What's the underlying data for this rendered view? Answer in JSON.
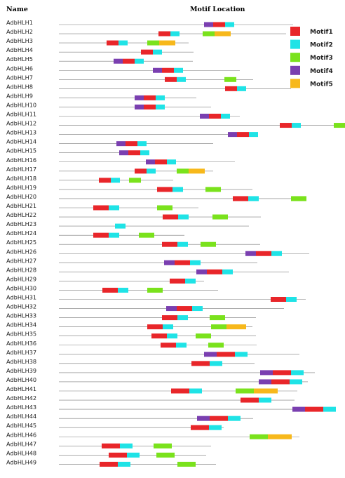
{
  "header": {
    "name": "Name",
    "motif_location": "Motif Location"
  },
  "legend": [
    {
      "key": "m1",
      "label": "Motif1",
      "color": "#e8262a"
    },
    {
      "key": "m2",
      "label": "Motif2",
      "color": "#1fe3e6"
    },
    {
      "key": "m3",
      "label": "Motif3",
      "color": "#7ae21c"
    },
    {
      "key": "m4",
      "label": "Motif4",
      "color": "#7a3fb0"
    },
    {
      "key": "m5",
      "label": "Motif5",
      "color": "#f7b81b"
    }
  ],
  "genes": [
    {
      "name": "AdbHLH1",
      "len": 334,
      "motifs": [
        [
          "m4",
          207,
          13
        ],
        [
          "m1",
          220,
          17
        ],
        [
          "m2",
          237,
          13
        ]
      ]
    },
    {
      "name": "AdbHLH2",
      "len": 324,
      "motifs": [
        [
          "m1",
          142,
          17
        ],
        [
          "m2",
          159,
          13
        ],
        [
          "m3",
          205,
          17
        ],
        [
          "m5",
          222,
          23
        ]
      ]
    },
    {
      "name": "AdbHLH3",
      "len": 185,
      "motifs": [
        [
          "m1",
          68,
          17
        ],
        [
          "m2",
          85,
          13
        ],
        [
          "m3",
          126,
          17
        ],
        [
          "m5",
          143,
          23
        ]
      ]
    },
    {
      "name": "AdbHLH4",
      "len": 192,
      "motifs": [
        [
          "m1",
          117,
          17
        ],
        [
          "m2",
          134,
          13
        ]
      ]
    },
    {
      "name": "AdbHLH5",
      "len": 191,
      "motifs": [
        [
          "m4",
          78,
          13
        ],
        [
          "m1",
          91,
          17
        ],
        [
          "m2",
          108,
          13
        ]
      ]
    },
    {
      "name": "AdbHLH6",
      "len": 258,
      "motifs": [
        [
          "m4",
          134,
          13
        ],
        [
          "m1",
          147,
          17
        ],
        [
          "m2",
          164,
          13
        ]
      ]
    },
    {
      "name": "AdbHLH7",
      "len": 277,
      "motifs": [
        [
          "m1",
          151,
          17
        ],
        [
          "m2",
          168,
          13
        ],
        [
          "m3",
          236,
          17
        ]
      ]
    },
    {
      "name": "AdbHLH8",
      "len": 331,
      "motifs": [
        [
          "m1",
          237,
          17
        ],
        [
          "m2",
          254,
          13
        ]
      ]
    },
    {
      "name": "AdbHLH9",
      "len": 196,
      "motifs": [
        [
          "m4",
          108,
          13
        ],
        [
          "m1",
          121,
          17
        ],
        [
          "m2",
          138,
          13
        ]
      ]
    },
    {
      "name": "AdbHLH10",
      "len": 217,
      "motifs": [
        [
          "m4",
          108,
          13
        ],
        [
          "m1",
          121,
          17
        ],
        [
          "m2",
          138,
          13
        ]
      ]
    },
    {
      "name": "AdbHLH11",
      "len": 258,
      "motifs": [
        [
          "m4",
          201,
          13
        ],
        [
          "m1",
          214,
          17
        ],
        [
          "m2",
          231,
          13
        ]
      ]
    },
    {
      "name": "AdbHLH12",
      "len": 414,
      "motifs": [
        [
          "m1",
          315,
          17
        ],
        [
          "m2",
          332,
          13
        ],
        [
          "m3",
          392,
          17
        ]
      ]
    },
    {
      "name": "AdbHLH13",
      "len": 283,
      "motifs": [
        [
          "m4",
          241,
          13
        ],
        [
          "m1",
          254,
          17
        ],
        [
          "m2",
          271,
          13
        ]
      ]
    },
    {
      "name": "AdbHLH14",
      "len": 220,
      "motifs": [
        [
          "m4",
          82,
          13
        ],
        [
          "m1",
          95,
          17
        ],
        [
          "m2",
          112,
          13
        ]
      ]
    },
    {
      "name": "AdbHLH15",
      "len": 128,
      "motifs": [
        [
          "m4",
          86,
          13
        ],
        [
          "m1",
          99,
          17
        ],
        [
          "m2",
          116,
          13
        ]
      ]
    },
    {
      "name": "AdbHLH16",
      "len": 251,
      "motifs": [
        [
          "m4",
          124,
          13
        ],
        [
          "m1",
          137,
          17
        ],
        [
          "m2",
          154,
          13
        ]
      ]
    },
    {
      "name": "AdbHLH17",
      "len": 220,
      "motifs": [
        [
          "m1",
          108,
          17
        ],
        [
          "m2",
          125,
          13
        ],
        [
          "m3",
          168,
          17
        ],
        [
          "m5",
          185,
          23
        ]
      ]
    },
    {
      "name": "AdbHLH18",
      "len": 163,
      "motifs": [
        [
          "m1",
          57,
          17
        ],
        [
          "m2",
          74,
          13
        ],
        [
          "m3",
          100,
          17
        ]
      ]
    },
    {
      "name": "AdbHLH19",
      "len": 276,
      "motifs": [
        [
          "m1",
          140,
          22
        ],
        [
          "m2",
          162,
          15
        ],
        [
          "m3",
          209,
          22
        ]
      ]
    },
    {
      "name": "AdbHLH20",
      "len": 348,
      "motifs": [
        [
          "m1",
          248,
          22
        ],
        [
          "m2",
          270,
          15
        ],
        [
          "m3",
          331,
          22
        ]
      ]
    },
    {
      "name": "AdbHLH21",
      "len": 199,
      "motifs": [
        [
          "m1",
          49,
          22
        ],
        [
          "m2",
          71,
          15
        ],
        [
          "m3",
          140,
          22
        ]
      ]
    },
    {
      "name": "AdbHLH22",
      "len": 288,
      "motifs": [
        [
          "m1",
          148,
          22
        ],
        [
          "m2",
          170,
          15
        ],
        [
          "m3",
          219,
          22
        ]
      ]
    },
    {
      "name": "AdbHLH23",
      "len": 271,
      "motifs": [
        [
          "m2",
          80,
          15
        ]
      ]
    },
    {
      "name": "AdbHLH24",
      "len": 179,
      "motifs": [
        [
          "m1",
          49,
          22
        ],
        [
          "m2",
          71,
          15
        ],
        [
          "m3",
          114,
          22
        ]
      ]
    },
    {
      "name": "AdbHLH25",
      "len": 287,
      "motifs": [
        [
          "m1",
          147,
          22
        ],
        [
          "m2",
          169,
          15
        ],
        [
          "m3",
          202,
          22
        ]
      ]
    },
    {
      "name": "AdbHLH26",
      "len": 357,
      "motifs": [
        [
          "m4",
          266,
          15
        ],
        [
          "m1",
          281,
          22
        ],
        [
          "m2",
          303,
          15
        ]
      ]
    },
    {
      "name": "AdbHLH27",
      "len": 283,
      "motifs": [
        [
          "m4",
          150,
          15
        ],
        [
          "m1",
          165,
          22
        ],
        [
          "m2",
          187,
          15
        ]
      ]
    },
    {
      "name": "AdbHLH28",
      "len": 328,
      "motifs": [
        [
          "m4",
          196,
          15
        ],
        [
          "m1",
          211,
          22
        ],
        [
          "m2",
          233,
          15
        ]
      ]
    },
    {
      "name": "AdbHLH29",
      "len": 207,
      "motifs": [
        [
          "m1",
          158,
          22
        ],
        [
          "m2",
          180,
          15
        ]
      ]
    },
    {
      "name": "AdbHLH30",
      "len": 227,
      "motifs": [
        [
          "m1",
          62,
          22
        ],
        [
          "m2",
          84,
          15
        ],
        [
          "m3",
          126,
          22
        ]
      ]
    },
    {
      "name": "AdbHLH31",
      "len": 352,
      "motifs": [
        [
          "m1",
          302,
          22
        ],
        [
          "m2",
          324,
          15
        ]
      ]
    },
    {
      "name": "AdbHLH32",
      "len": 321,
      "motifs": [
        [
          "m4",
          153,
          15
        ],
        [
          "m1",
          168,
          22
        ],
        [
          "m2",
          190,
          15
        ]
      ]
    },
    {
      "name": "AdbHLH33",
      "len": 281,
      "motifs": [
        [
          "m1",
          147,
          22
        ],
        [
          "m2",
          169,
          15
        ],
        [
          "m3",
          215,
          22
        ]
      ]
    },
    {
      "name": "AdbHLH34",
      "len": 276,
      "motifs": [
        [
          "m1",
          126,
          22
        ],
        [
          "m2",
          148,
          15
        ],
        [
          "m3",
          217,
          22
        ],
        [
          "m5",
          239,
          28
        ]
      ]
    },
    {
      "name": "AdbHLH35",
      "len": 281,
      "motifs": [
        [
          "m1",
          132,
          22
        ],
        [
          "m2",
          154,
          15
        ],
        [
          "m3",
          195,
          22
        ]
      ]
    },
    {
      "name": "AdbHLH36",
      "len": 282,
      "motifs": [
        [
          "m1",
          145,
          22
        ],
        [
          "m2",
          167,
          15
        ],
        [
          "m3",
          213,
          22
        ]
      ]
    },
    {
      "name": "AdbHLH37",
      "len": 343,
      "motifs": [
        [
          "m4",
          207,
          18
        ],
        [
          "m1",
          225,
          26
        ],
        [
          "m2",
          251,
          18
        ]
      ]
    },
    {
      "name": "AdbHLH38",
      "len": 279,
      "motifs": [
        [
          "m1",
          189,
          26
        ],
        [
          "m2",
          215,
          18
        ]
      ]
    },
    {
      "name": "AdbHLH39",
      "len": 365,
      "motifs": [
        [
          "m4",
          287,
          18
        ],
        [
          "m1",
          305,
          26
        ],
        [
          "m2",
          331,
          18
        ]
      ]
    },
    {
      "name": "AdbHLH40",
      "len": 355,
      "motifs": [
        [
          "m4",
          285,
          18
        ],
        [
          "m1",
          303,
          26
        ],
        [
          "m2",
          329,
          18
        ]
      ]
    },
    {
      "name": "AdbHLH41",
      "len": 340,
      "motifs": [
        [
          "m1",
          160,
          26
        ],
        [
          "m2",
          186,
          18
        ],
        [
          "m3",
          252,
          26
        ],
        [
          "m5",
          278,
          34
        ]
      ]
    },
    {
      "name": "AdbHLH42",
      "len": 336,
      "motifs": [
        [
          "m1",
          259,
          26
        ],
        [
          "m2",
          285,
          18
        ]
      ]
    },
    {
      "name": "AdbHLH43",
      "len": 385,
      "motifs": [
        [
          "m4",
          333,
          18
        ],
        [
          "m1",
          351,
          26
        ],
        [
          "m2",
          377,
          18
        ]
      ]
    },
    {
      "name": "AdbHLH44",
      "len": 277,
      "motifs": [
        [
          "m4",
          197,
          18
        ],
        [
          "m1",
          215,
          26
        ],
        [
          "m2",
          241,
          18
        ]
      ]
    },
    {
      "name": "AdbHLH45",
      "len": 235,
      "motifs": [
        [
          "m1",
          188,
          26
        ],
        [
          "m2",
          214,
          18
        ]
      ]
    },
    {
      "name": "AdbHLH46",
      "len": 343,
      "motifs": [
        [
          "m3",
          272,
          26
        ],
        [
          "m5",
          298,
          34
        ]
      ]
    },
    {
      "name": "AdbHLH47",
      "len": 217,
      "motifs": [
        [
          "m1",
          61,
          26
        ],
        [
          "m2",
          87,
          18
        ],
        [
          "m3",
          135,
          26
        ]
      ]
    },
    {
      "name": "AdbHLH48",
      "len": 210,
      "motifs": [
        [
          "m1",
          71,
          26
        ],
        [
          "m2",
          97,
          18
        ],
        [
          "m3",
          139,
          26
        ]
      ]
    },
    {
      "name": "AdbHLH49",
      "len": 224,
      "motifs": [
        [
          "m1",
          58,
          26
        ],
        [
          "m2",
          84,
          18
        ],
        [
          "m3",
          169,
          26
        ]
      ]
    }
  ]
}
